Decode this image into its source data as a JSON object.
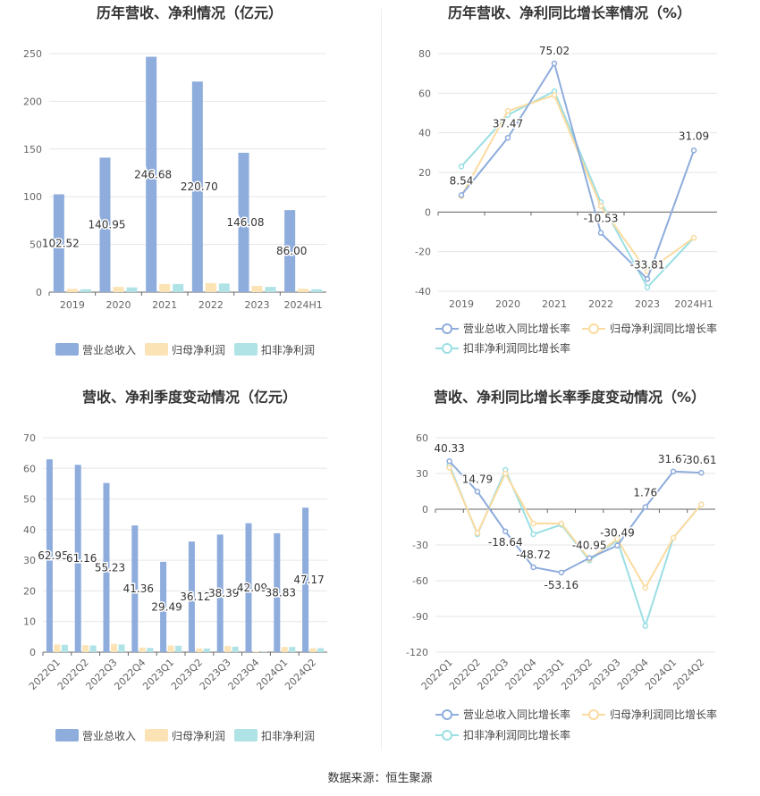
{
  "colors": {
    "revenue": "#8eacdc",
    "parent_profit": "#fbe3b5",
    "deducted_profit": "#b0e3e6"
  },
  "chart_data": [
    {
      "id": "annual_bars",
      "type": "bar",
      "title": "历年营收、净利情况（亿元）",
      "categories": [
        "2019",
        "2020",
        "2021",
        "2022",
        "2023",
        "2024H1"
      ],
      "series": [
        {
          "name": "营业总收入",
          "values": [
            102.52,
            140.95,
            246.68,
            220.7,
            146.08,
            86.0
          ],
          "labels": [
            "102.52",
            "140.95",
            "246.68",
            "220.70",
            "146.08",
            "86.00"
          ]
        },
        {
          "name": "归母净利润",
          "values": [
            3.5,
            5.5,
            8.5,
            9.5,
            6.5,
            3.5
          ]
        },
        {
          "name": "扣非净利润",
          "values": [
            3.0,
            5.0,
            8.5,
            9.0,
            5.5,
            3.0
          ]
        }
      ],
      "ylim": [
        0,
        250
      ],
      "yticks": [
        "0",
        "50",
        "100",
        "150",
        "200",
        "250"
      ],
      "grid": true,
      "legend": "bottom"
    },
    {
      "id": "annual_growth",
      "type": "line",
      "title": "历年营收、净利同比增长率情况（%）",
      "categories": [
        "2019",
        "2020",
        "2021",
        "2022",
        "2023",
        "2024H1"
      ],
      "series": [
        {
          "name": "营业总收入同比增长率",
          "values": [
            8.54,
            37.47,
            75.02,
            -10.53,
            -33.81,
            31.09
          ],
          "labels": [
            "8.54",
            "37.47",
            "75.02",
            "-10.53",
            "-33.81",
            "31.09"
          ]
        },
        {
          "name": "归母净利润同比增长率",
          "values": [
            8,
            51,
            59,
            3,
            -30,
            -13
          ]
        },
        {
          "name": "扣非净利润同比增长率",
          "values": [
            23,
            49,
            61,
            5,
            -38,
            -13
          ]
        }
      ],
      "ylim": [
        -40,
        80
      ],
      "yticks": [
        "-40",
        "-20",
        "0",
        "20",
        "40",
        "60",
        "80"
      ],
      "grid": true,
      "legend": "bottom"
    },
    {
      "id": "quarterly_bars",
      "type": "bar",
      "title": "营收、净利季度变动情况（亿元）",
      "categories": [
        "2022Q1",
        "2022Q2",
        "2022Q3",
        "2022Q4",
        "2023Q1",
        "2023Q2",
        "2023Q3",
        "2023Q4",
        "2024Q1",
        "2024Q2"
      ],
      "series": [
        {
          "name": "营业总收入",
          "values": [
            62.95,
            61.16,
            55.23,
            41.36,
            29.49,
            36.12,
            38.39,
            42.09,
            38.83,
            47.17
          ],
          "labels": [
            "62.95",
            "61.16",
            "55.23",
            "41.36",
            "29.49",
            "36.12",
            "38.39",
            "42.09",
            "38.83",
            "47.17"
          ]
        },
        {
          "name": "归母净利润",
          "values": [
            2.5,
            2.3,
            2.7,
            1.5,
            2.2,
            1.2,
            2.0,
            0.2,
            1.7,
            1.3
          ]
        },
        {
          "name": "扣非净利润",
          "values": [
            2.4,
            2.2,
            2.5,
            1.4,
            2.1,
            1.2,
            1.8,
            0.1,
            1.7,
            1.3
          ]
        }
      ],
      "ylim": [
        0,
        70
      ],
      "yticks": [
        "0",
        "10",
        "20",
        "30",
        "40",
        "50",
        "60",
        "70"
      ],
      "grid": true,
      "legend": "bottom"
    },
    {
      "id": "quarterly_growth",
      "type": "line",
      "title": "营收、净利同比增长率季度变动情况（%）",
      "categories": [
        "2022Q1",
        "2022Q2",
        "2022Q3",
        "2022Q4",
        "2023Q1",
        "2023Q2",
        "2023Q3",
        "2023Q4",
        "2024Q1",
        "2024Q2"
      ],
      "series": [
        {
          "name": "营业总收入同比增长率",
          "values": [
            40.33,
            14.79,
            -18.64,
            -48.72,
            -53.16,
            -40.95,
            -30.49,
            1.76,
            31.67,
            30.61
          ],
          "labels": [
            "40.33",
            "14.79",
            "-18.64",
            "-48.72",
            "-53.16",
            "-40.95",
            "-30.49",
            "1.76",
            "31.67",
            "30.61"
          ]
        },
        {
          "name": "归母净利润同比增长率",
          "values": [
            35,
            -20,
            30,
            -12,
            -12,
            -42,
            -25,
            -66,
            -24,
            4
          ]
        },
        {
          "name": "扣非净利润同比增长率",
          "values": [
            37,
            -21,
            33,
            -21,
            -13,
            -43,
            -26,
            -98,
            -24,
            4
          ]
        }
      ],
      "ylim": [
        -120,
        60
      ],
      "yticks": [
        "-120",
        "-90",
        "-60",
        "-30",
        "0",
        "30",
        "60"
      ],
      "grid": true,
      "legend": "bottom"
    }
  ],
  "source": "数据来源：恒生聚源"
}
